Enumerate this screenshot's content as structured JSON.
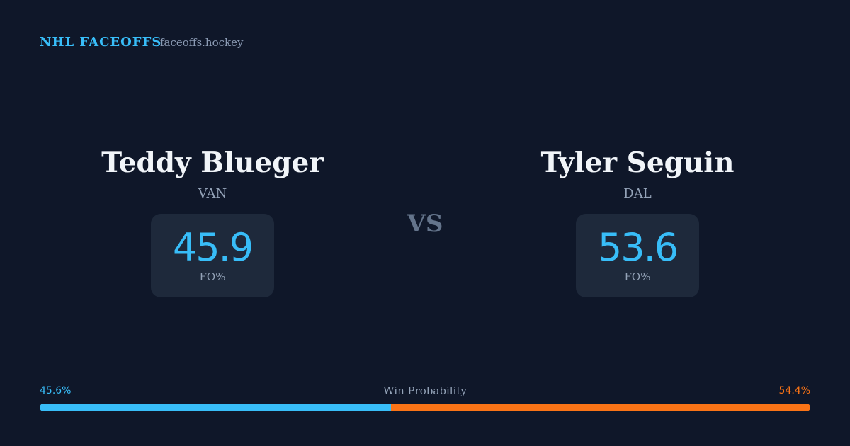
{
  "header": {
    "brand": "NHL FACEOFFS",
    "site": "faceoffs.hockey"
  },
  "players": [
    {
      "name": "Teddy Blueger",
      "team": "VAN",
      "value": 45.9,
      "stat_label": "FO%"
    },
    {
      "name": "Tyler Seguin",
      "team": "DAL",
      "value": 53.6,
      "stat_label": "FO%"
    }
  ],
  "versus": "VS",
  "win_probability": {
    "label": "Win Probability",
    "values": [
      45.6,
      54.4
    ],
    "value_labels": [
      "45.6%",
      "54.4%"
    ],
    "colors": [
      "#38bdf8",
      "#f97316"
    ]
  }
}
